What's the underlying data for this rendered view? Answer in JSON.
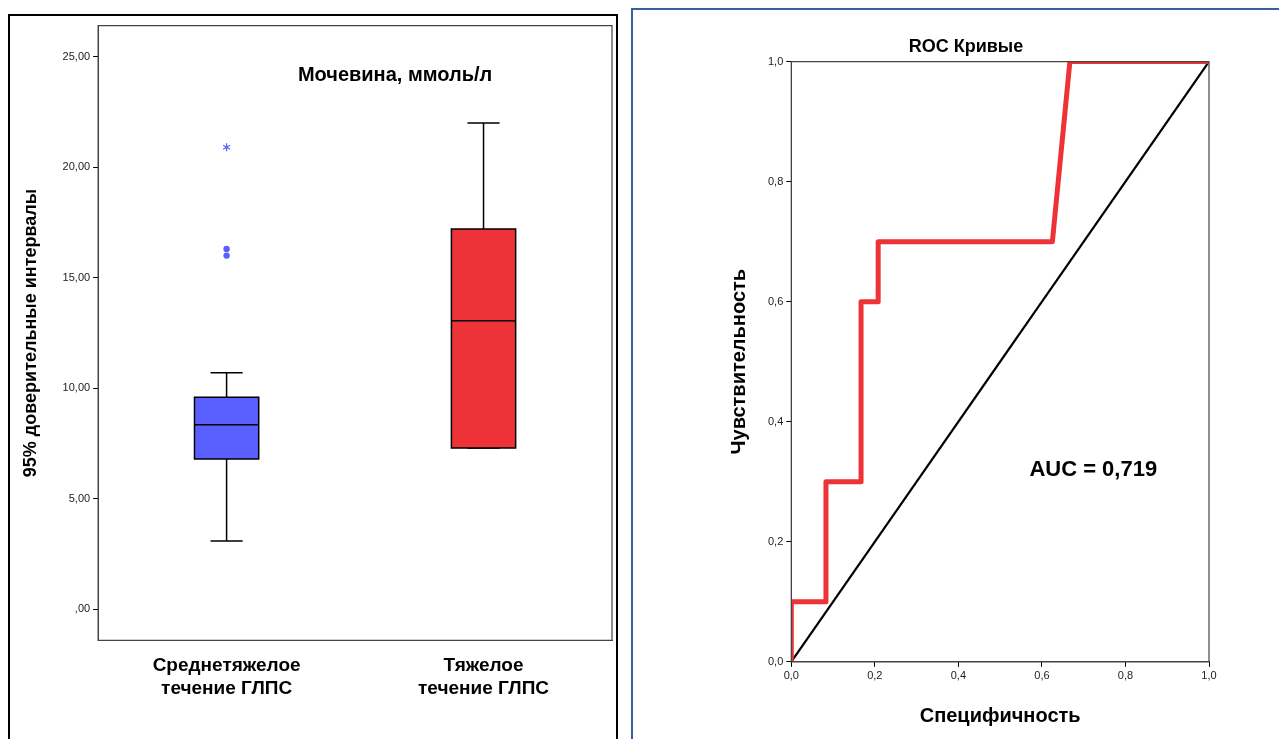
{
  "chart_data": [
    {
      "type": "box",
      "title": "Мочевина, ммоль/л",
      "ylabel": "95% доверительные интервалы",
      "categories": [
        "Среднетяжелое\nтечение ГЛПС",
        "Тяжелое\nтечение ГЛПС"
      ],
      "colors": [
        "#5a5fff",
        "#ee3338"
      ],
      "boxes": [
        {
          "low": 3.1,
          "q1": 6.8,
          "median": 8.35,
          "q3": 9.6,
          "high": 10.7,
          "outliers": [
            16.0,
            16.3,
            20.9
          ]
        },
        {
          "low": 7.3,
          "q1": 7.3,
          "median": 13.05,
          "q3": 17.2,
          "high": 22.0
        }
      ],
      "ylim": [
        -1.4,
        26.4
      ],
      "yticks": [
        {
          "value": 0,
          "label": ",00"
        },
        {
          "value": 5,
          "label": "5,00"
        },
        {
          "value": 10,
          "label": "10,00"
        },
        {
          "value": 15,
          "label": "15,00"
        },
        {
          "value": 20,
          "label": "20,00"
        },
        {
          "value": 25,
          "label": "25,00"
        }
      ],
      "grid": false,
      "legend": false
    },
    {
      "type": "line",
      "title": "ROC Кривые",
      "xlabel": "Специфичность",
      "ylabel": "Чувствительность",
      "series": [
        {
          "color": "#ee3338",
          "x": [
            0,
            0,
            0.083,
            0.083,
            0.167,
            0.167,
            0.208,
            0.208,
            0.625,
            0.667,
            1
          ],
          "values": [
            0,
            0.1,
            0.1,
            0.3,
            0.3,
            0.6,
            0.6,
            0.7,
            0.7,
            1,
            1
          ]
        },
        {
          "color": "#000000",
          "x": [
            0,
            1
          ],
          "values": [
            0,
            1
          ]
        }
      ],
      "xlim": [
        0,
        1
      ],
      "ylim": [
        0,
        1
      ],
      "xticks": [
        {
          "value": 0,
          "label": "0,0"
        },
        {
          "value": 0.2,
          "label": "0,2"
        },
        {
          "value": 0.4,
          "label": "0,4"
        },
        {
          "value": 0.6,
          "label": "0,6"
        },
        {
          "value": 0.8,
          "label": "0,8"
        },
        {
          "value": 1,
          "label": "1,0"
        }
      ],
      "yticks": [
        {
          "value": 0,
          "label": "0,0"
        },
        {
          "value": 0.2,
          "label": "0,2"
        },
        {
          "value": 0.4,
          "label": "0,4"
        },
        {
          "value": 0.6,
          "label": "0,6"
        },
        {
          "value": 0.8,
          "label": "0,8"
        },
        {
          "value": 1,
          "label": "1,0"
        }
      ],
      "annotations": [
        "AUC = 0,719"
      ],
      "grid": false,
      "legend": false,
      "marker": "none",
      "line_style": "solid"
    }
  ]
}
